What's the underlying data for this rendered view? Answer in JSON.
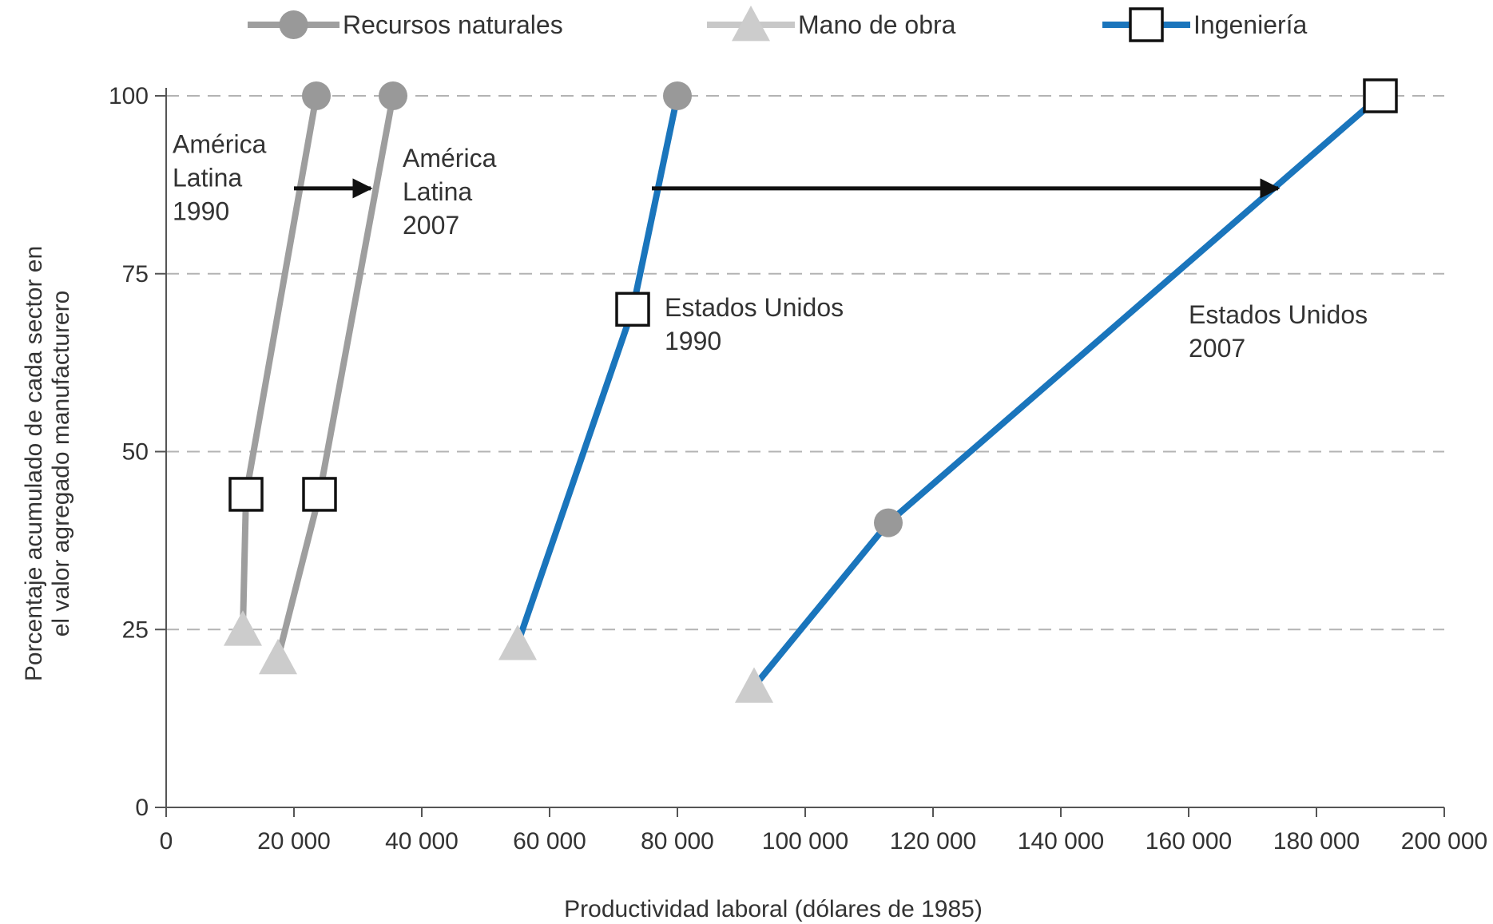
{
  "chart_data": {
    "type": "line",
    "title": "",
    "xlabel": "Productividad laboral (dólares de 1985)",
    "ylabel_lines": [
      "Porcentaje acumulado de cada sector en",
      "el valor agregado manufacturero"
    ],
    "xlim": [
      0,
      200000
    ],
    "ylim": [
      0,
      100
    ],
    "x_ticks": [
      0,
      20000,
      40000,
      60000,
      80000,
      100000,
      120000,
      140000,
      160000,
      180000,
      200000
    ],
    "x_tick_labels": [
      "0",
      "20 000",
      "40 000",
      "60 000",
      "80 000",
      "100 000",
      "120 000",
      "140 000",
      "160 000",
      "180 000",
      "200 000"
    ],
    "y_ticks": [
      0,
      25,
      50,
      75,
      100
    ],
    "y_tick_labels": [
      "0",
      "25",
      "50",
      "75",
      "100"
    ],
    "grid": "horizontal dashed",
    "legend_position": "top",
    "legend": [
      {
        "label": "Recursos naturales",
        "marker": "circle",
        "color": "#9e9e9e"
      },
      {
        "label": "Mano de obra",
        "marker": "triangle",
        "color": "#c8c8c8"
      },
      {
        "label": "Ingeniería",
        "marker": "square",
        "color": "#1a75bc"
      }
    ],
    "curves": [
      {
        "region": "América Latina",
        "year": "1990",
        "color": "#9e9e9e",
        "points": [
          {
            "sector": "Mano de obra",
            "x": 12000,
            "y": 25
          },
          {
            "sector": "Ingeniería",
            "x": 12500,
            "y": 44
          },
          {
            "sector": "Recursos naturales",
            "x": 23500,
            "y": 100
          }
        ]
      },
      {
        "region": "América Latina",
        "year": "2007",
        "color": "#9e9e9e",
        "points": [
          {
            "sector": "Mano de obra",
            "x": 17500,
            "y": 21
          },
          {
            "sector": "Ingeniería",
            "x": 24000,
            "y": 44
          },
          {
            "sector": "Recursos naturales",
            "x": 35500,
            "y": 100
          }
        ]
      },
      {
        "region": "Estados Unidos",
        "year": "1990",
        "color": "#1a75bc",
        "points": [
          {
            "sector": "Mano de obra",
            "x": 55000,
            "y": 23
          },
          {
            "sector": "Ingeniería",
            "x": 73000,
            "y": 70
          },
          {
            "sector": "Recursos naturales",
            "x": 80000,
            "y": 100
          }
        ]
      },
      {
        "region": "Estados Unidos",
        "year": "2007",
        "color": "#1a75bc",
        "points": [
          {
            "sector": "Mano de obra",
            "x": 92000,
            "y": 17
          },
          {
            "sector": "Recursos naturales",
            "x": 113000,
            "y": 40
          },
          {
            "sector": "Ingeniería",
            "x": 190000,
            "y": 100
          }
        ]
      }
    ],
    "annotations": [
      {
        "lines": [
          "América",
          "Latina",
          "1990"
        ],
        "x": 1000,
        "y": 92
      },
      {
        "lines": [
          "América",
          "Latina",
          "2007"
        ],
        "x": 37000,
        "y": 90
      },
      {
        "lines": [
          "Estados Unidos",
          "1990"
        ],
        "x": 78000,
        "y": 69
      },
      {
        "lines": [
          "Estados Unidos",
          "2007"
        ],
        "x": 160000,
        "y": 68
      }
    ],
    "arrows": [
      {
        "from": [
          20000,
          87
        ],
        "to": [
          32000,
          87
        ]
      },
      {
        "from": [
          76000,
          87
        ],
        "to": [
          174000,
          87
        ]
      }
    ]
  }
}
